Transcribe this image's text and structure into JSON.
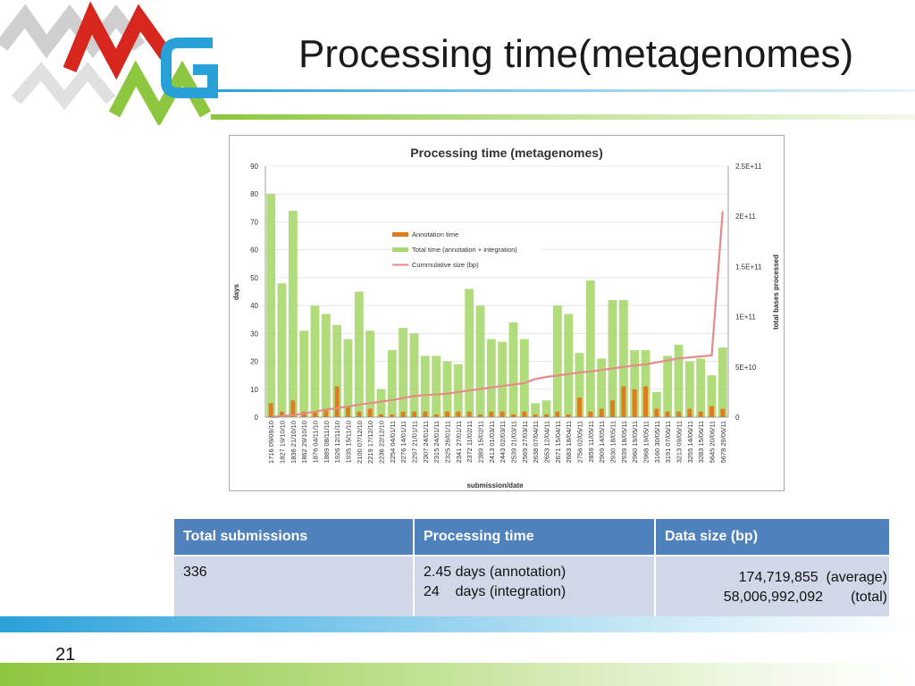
{
  "slide": {
    "title": "Processing time(metagenomes)",
    "page_number": "21"
  },
  "colors": {
    "logo_red": "#d7261e",
    "logo_gray": "#cfcfcf",
    "logo_green": "#8dc63f",
    "logo_blue": "#2aa0d8",
    "annotation": "#e07b20",
    "total": "#a8d86e",
    "cumulative": "#e48c8c",
    "table_header": "#4f81bd",
    "table_body": "#d0d8e8"
  },
  "chart_data": {
    "type": "bar",
    "title": "Processing time (metagenomes)",
    "xlabel": "submission/date",
    "ylabel": "days",
    "y2label": "total bases processed",
    "ylim": [
      0,
      90
    ],
    "y2lim": [
      0,
      250000000000
    ],
    "yticks": [
      "0",
      "10",
      "20",
      "30",
      "40",
      "50",
      "60",
      "70",
      "80",
      "90"
    ],
    "y2ticks": [
      "0",
      "5E+10",
      "1E+11",
      "1.5E+11",
      "2E+11",
      "2.5E+11"
    ],
    "legend_position": "top-left",
    "categories": [
      "1716 09/09/10",
      "1827 19/10/10",
      "1836 21/10/10",
      "1862 29/10/10",
      "1876 04/11/10",
      "1889 08/11/10",
      "1926 12/11/10",
      "1935 15/11/10",
      "2100 07/12/10",
      "2219 17/12/10",
      "2236 22/12/10",
      "2254 04/01/11",
      "2276 14/01/11",
      "2297 21/01/11",
      "2307 24/01/11",
      "2315 24/01/11",
      "2325 26/01/11",
      "2341 27/01/11",
      "2372 11/02/11",
      "2389 15/02/11",
      "2413 01/03/11",
      "2443 02/03/11",
      "2539 21/03/11",
      "2569 27/03/11",
      "2638 07/04/11",
      "2653 12/04/11",
      "2671 15/04/11",
      "2683 18/04/11",
      "2756 02/05/11",
      "2859 11/05/11",
      "2909 14/05/11",
      "2930 18/05/11",
      "2939 18/05/11",
      "2960 19/05/11",
      "2968 19/05/11",
      "3160 30/05/11",
      "3191 07/06/11",
      "3213 09/06/11",
      "3255 14/06/11",
      "3283 15/06/11",
      "5645 20/06/11",
      "5678 29/06/11"
    ],
    "series": [
      {
        "name": "Annotation time",
        "values": [
          5,
          2,
          6,
          2,
          2,
          3,
          11,
          4,
          2,
          3,
          1,
          1,
          2,
          2,
          2,
          1,
          2,
          2,
          2,
          1,
          2,
          2,
          1,
          2,
          1,
          1,
          2,
          1,
          7,
          2,
          3,
          6,
          11,
          10,
          11,
          3,
          2,
          2,
          3,
          2,
          4,
          3
        ]
      },
      {
        "name": "Total time (annotation + integration)",
        "values": [
          80,
          48,
          74,
          31,
          40,
          37,
          33,
          28,
          45,
          31,
          10,
          24,
          32,
          30,
          22,
          22,
          20,
          19,
          46,
          40,
          28,
          27,
          34,
          28,
          5,
          6,
          40,
          37,
          23,
          49,
          21,
          42,
          42,
          24,
          24,
          9,
          22,
          26,
          20,
          21,
          15,
          25
        ]
      },
      {
        "name": "Cummulative size (bp)",
        "values": [
          0,
          1000000000,
          2000000000,
          3500000000,
          5500000000,
          7500000000,
          9000000000,
          10500000000,
          12500000000,
          14000000000,
          15500000000,
          17000000000,
          19000000000,
          21000000000,
          22000000000,
          22500000000,
          23500000000,
          25000000000,
          26500000000,
          28000000000,
          29500000000,
          31000000000,
          32500000000,
          34000000000,
          38000000000,
          40000000000,
          41500000000,
          43000000000,
          44500000000,
          45500000000,
          47000000000,
          48500000000,
          50000000000,
          51500000000,
          52500000000,
          54500000000,
          56500000000,
          58500000000,
          59500000000,
          60500000000,
          61500000000,
          205000000000
        ]
      }
    ]
  },
  "table": {
    "headers": [
      "Total submissions",
      "Processing time",
      "Data size (bp)"
    ],
    "row": {
      "submissions": "336",
      "time_line1": "2.45 days (annotation)",
      "time_line2": "24    days (integration)",
      "size_line1": "174,719,855  (average)",
      "size_line2": "58,006,992,092       (total)"
    }
  }
}
